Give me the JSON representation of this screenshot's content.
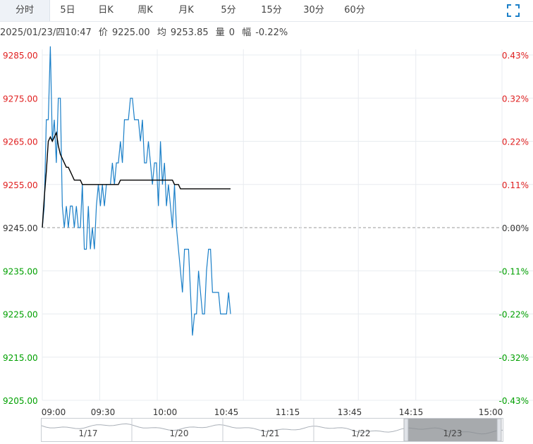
{
  "tabs": [
    {
      "label": "分时",
      "active": true
    },
    {
      "label": "5日"
    },
    {
      "label": "日K"
    },
    {
      "label": "周K"
    },
    {
      "label": "月K"
    },
    {
      "label": "5分"
    },
    {
      "label": "15分"
    },
    {
      "label": "30分"
    },
    {
      "label": "60分"
    }
  ],
  "fullscreen_icon": "expand-corners-icon",
  "info": {
    "datetime": "2025/01/23/四10:47",
    "price_label": "价",
    "price": "9225.00",
    "avg_label": "均",
    "avg": "9253.85",
    "volume_label": "量",
    "volume": "0",
    "change_label": "幅",
    "change": "-0.22%"
  },
  "colors": {
    "up": "#e02020",
    "down": "#00a000",
    "price_line": "#1a7fc8",
    "avg_line": "#000000",
    "grid": "#e8ecf0",
    "baseline": "#999999"
  },
  "chart_data": {
    "type": "line",
    "y_tick_labels": [
      "9285.00",
      "9275.00",
      "9265.00",
      "9255.00",
      "9245.00",
      "9235.00",
      "9225.00",
      "9215.00",
      "9205.00"
    ],
    "y_ticks": [
      9285,
      9275,
      9265,
      9255,
      9245,
      9235,
      9225,
      9215,
      9205
    ],
    "right_tick_labels": [
      "0.43%",
      "0.32%",
      "0.22%",
      "0.11%",
      "0.00%",
      "-0.11%",
      "-0.22%",
      "-0.32%",
      "-0.43%"
    ],
    "x_tick_labels": [
      "09:00",
      "09:30",
      "10:00",
      "10:45",
      "11:15",
      "13:45",
      "14:15",
      "15:00"
    ],
    "ylim": [
      9205,
      9285
    ],
    "prev_close": 9245,
    "session_minutes": 330,
    "grid": true,
    "series": [
      {
        "kind": "price",
        "values": [
          9245,
          9250,
          9270,
          9270,
          9287,
          9265,
          9270,
          9260,
          9275,
          9275,
          9250,
          9245,
          9250,
          9245,
          9250,
          9250,
          9245,
          9250,
          9245,
          9245,
          9255,
          9240,
          9240,
          9250,
          9240,
          9245,
          9240,
          9250,
          9255,
          9250,
          9255,
          9250,
          9255,
          9255,
          9255,
          9260,
          9255,
          9260,
          9260,
          9265,
          9260,
          9270,
          9270,
          9270,
          9275,
          9275,
          9270,
          9270,
          9270,
          9265,
          9270,
          9260,
          9260,
          9265,
          9260,
          9255,
          9260,
          9260,
          9250,
          9265,
          9255,
          9260,
          9250,
          9255,
          9250,
          9245,
          9255,
          9245,
          9240,
          9235,
          9230,
          9240,
          9240,
          9240,
          9230,
          9220,
          9225,
          9225,
          9235,
          9230,
          9225,
          9225,
          9235,
          9240,
          9240,
          9230,
          9230,
          9230,
          9230,
          9225,
          9225,
          9225,
          9225,
          9230,
          9225
        ]
      },
      {
        "kind": "average",
        "values": [
          9245,
          9252,
          9258,
          9265,
          9266,
          9265,
          9266,
          9267,
          9264,
          9262,
          9261,
          9260,
          9259,
          9259,
          9258,
          9257,
          9256,
          9256,
          9256,
          9256,
          9255,
          9255,
          9255,
          9255,
          9255,
          9255,
          9255,
          9255,
          9255,
          9255,
          9255,
          9255,
          9255,
          9255,
          9255,
          9255,
          9255,
          9255,
          9255,
          9256,
          9256,
          9256,
          9256,
          9256,
          9256,
          9256,
          9256,
          9256,
          9256,
          9256,
          9256,
          9256,
          9256,
          9256,
          9256,
          9256,
          9256,
          9256,
          9256,
          9256,
          9256,
          9256,
          9256,
          9256,
          9256,
          9256,
          9255,
          9255,
          9255,
          9254,
          9254,
          9254,
          9254,
          9254,
          9254,
          9254,
          9254,
          9254,
          9254,
          9254,
          9254,
          9254,
          9254,
          9254,
          9254,
          9254,
          9254,
          9254,
          9254,
          9254,
          9254,
          9254,
          9254,
          9254,
          9254
        ]
      }
    ],
    "navigator_labels": [
      "1/17",
      "1/20",
      "1/21",
      "1/22",
      "1/23"
    ],
    "navigator_selected": "1/23"
  }
}
